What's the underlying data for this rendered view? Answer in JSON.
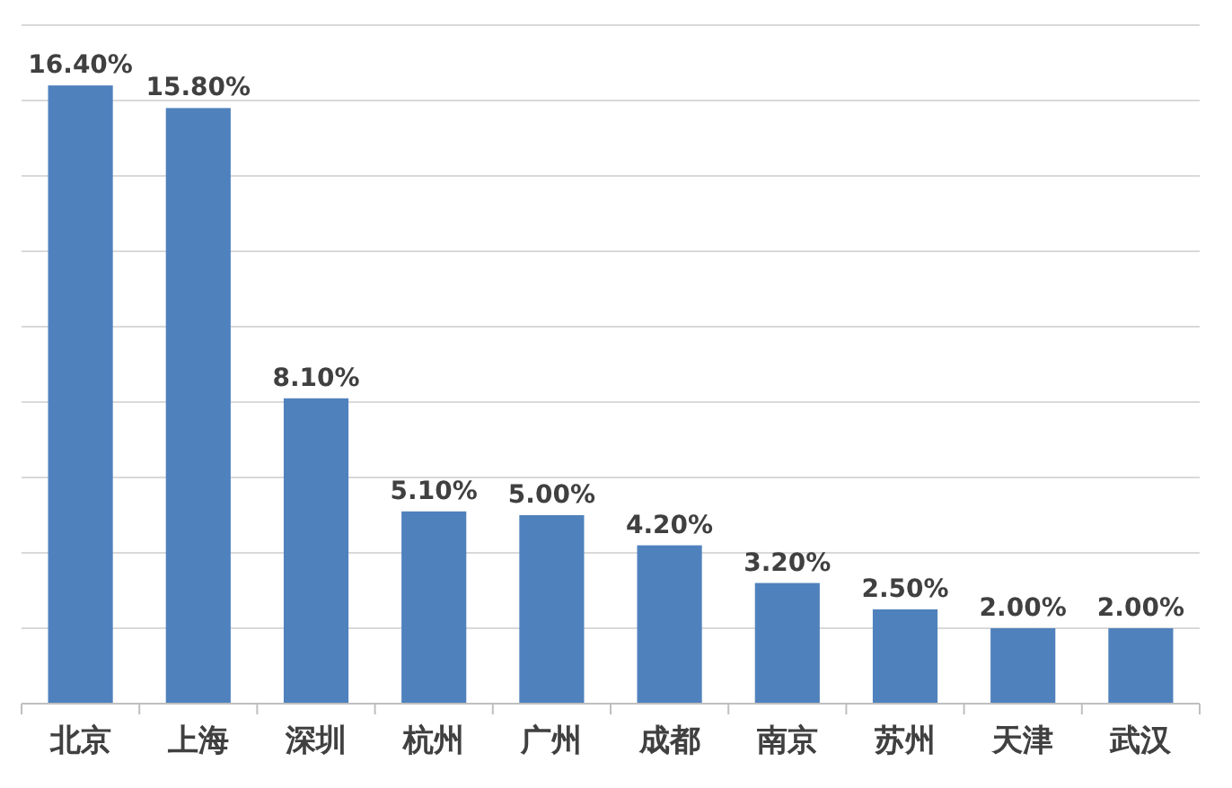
{
  "chart_data": {
    "type": "bar",
    "categories": [
      "北京",
      "上海",
      "深圳",
      "杭州",
      "广州",
      "成都",
      "南京",
      "苏州",
      "天津",
      "武汉"
    ],
    "values": [
      16.4,
      15.8,
      8.1,
      5.1,
      5.0,
      4.2,
      3.2,
      2.5,
      2.0,
      2.0
    ],
    "value_labels": [
      "16.40%",
      "15.80%",
      "8.10%",
      "5.10%",
      "5.00%",
      "4.20%",
      "3.20%",
      "2.50%",
      "2.00%",
      "2.00%"
    ],
    "color": "#4f81bd",
    "ylim": [
      0,
      18
    ],
    "yticks": [
      {
        "value": 0,
        "label": null
      },
      {
        "value": 2,
        "label": null
      },
      {
        "value": 4,
        "label": null
      },
      {
        "value": 6,
        "label": null
      },
      {
        "value": 8,
        "label": null
      },
      {
        "value": 10,
        "label": null
      },
      {
        "value": 12,
        "label": null
      },
      {
        "value": 14,
        "label": null
      },
      {
        "value": 16,
        "label": null
      },
      {
        "value": 18,
        "label": null
      }
    ],
    "grid": "y"
  }
}
